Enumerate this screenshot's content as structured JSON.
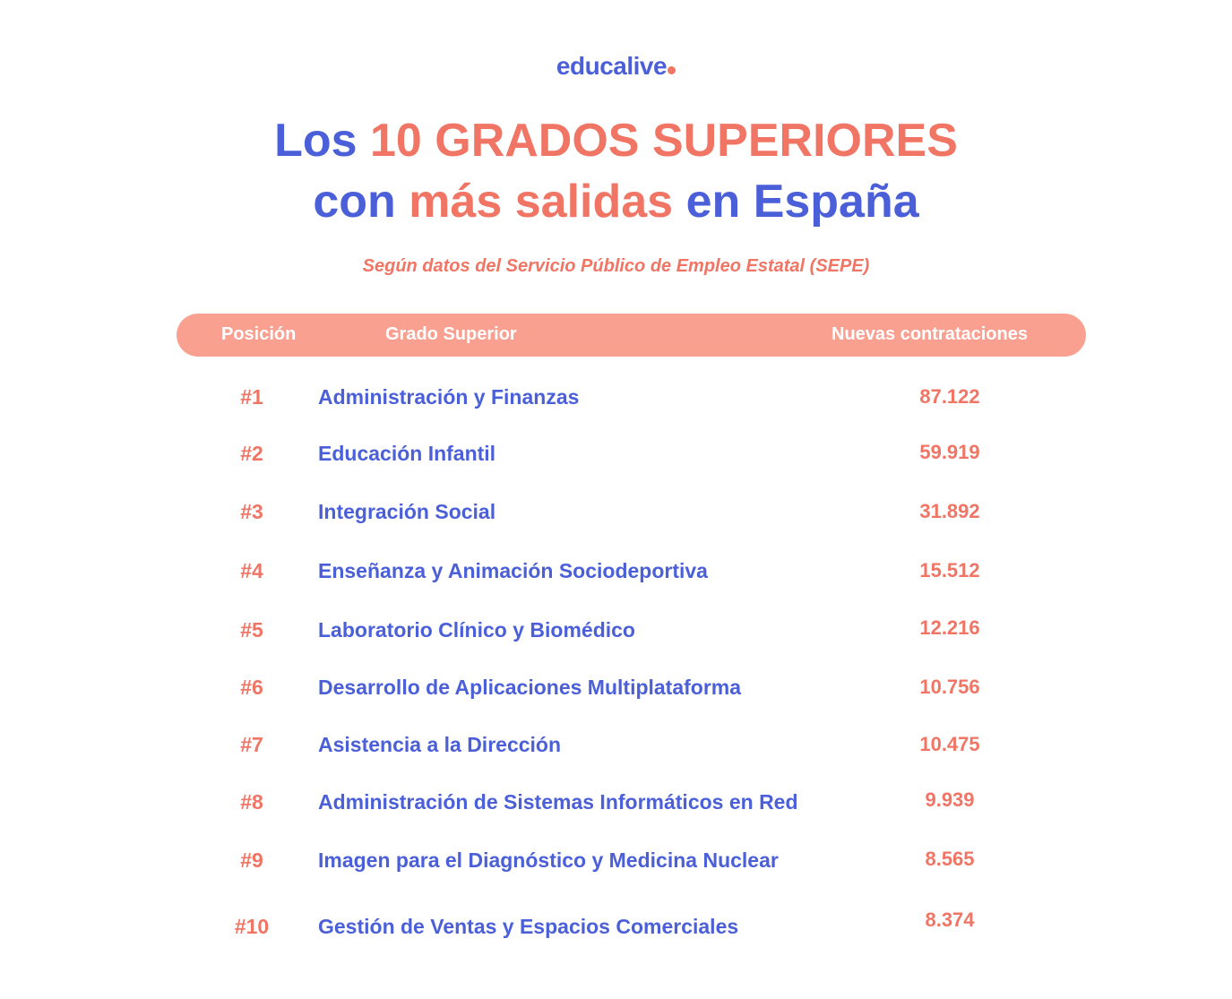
{
  "logo": "educalive",
  "title": {
    "line1": [
      "Los",
      "10 GRADOS SUPERIORES"
    ],
    "line2": [
      "con",
      "más salidas",
      "en España"
    ]
  },
  "subtitle": "Según datos del Servicio Público de Empleo Estatal (SEPE)",
  "table": {
    "headers": [
      "Posición",
      "Grado Superior",
      "Nuevas contrataciones"
    ],
    "rows": [
      [
        "#1",
        "Administración y Finanzas",
        "87.122"
      ],
      [
        "#2",
        "Educación Infantil",
        "59.919"
      ],
      [
        "#3",
        "Integración Social",
        "31.892"
      ],
      [
        "#4",
        "Enseñanza y Animación Sociodeportiva",
        "15.512"
      ],
      [
        "#5",
        "Laboratorio Clínico y Biomédico",
        "12.216"
      ],
      [
        "#6",
        "Desarrollo de Aplicaciones Multiplataforma",
        "10.756"
      ],
      [
        "#7",
        "Asistencia a la Dirección",
        "10.475"
      ],
      [
        "#8",
        "Administración de Sistemas Informáticos en Red",
        "9.939"
      ],
      [
        "#9",
        "Imagen para el Diagnóstico y Medicina Nuclear",
        "8.565"
      ],
      [
        "#10",
        "Gestión de Ventas y Espacios Comerciales",
        "8.374"
      ]
    ]
  }
}
